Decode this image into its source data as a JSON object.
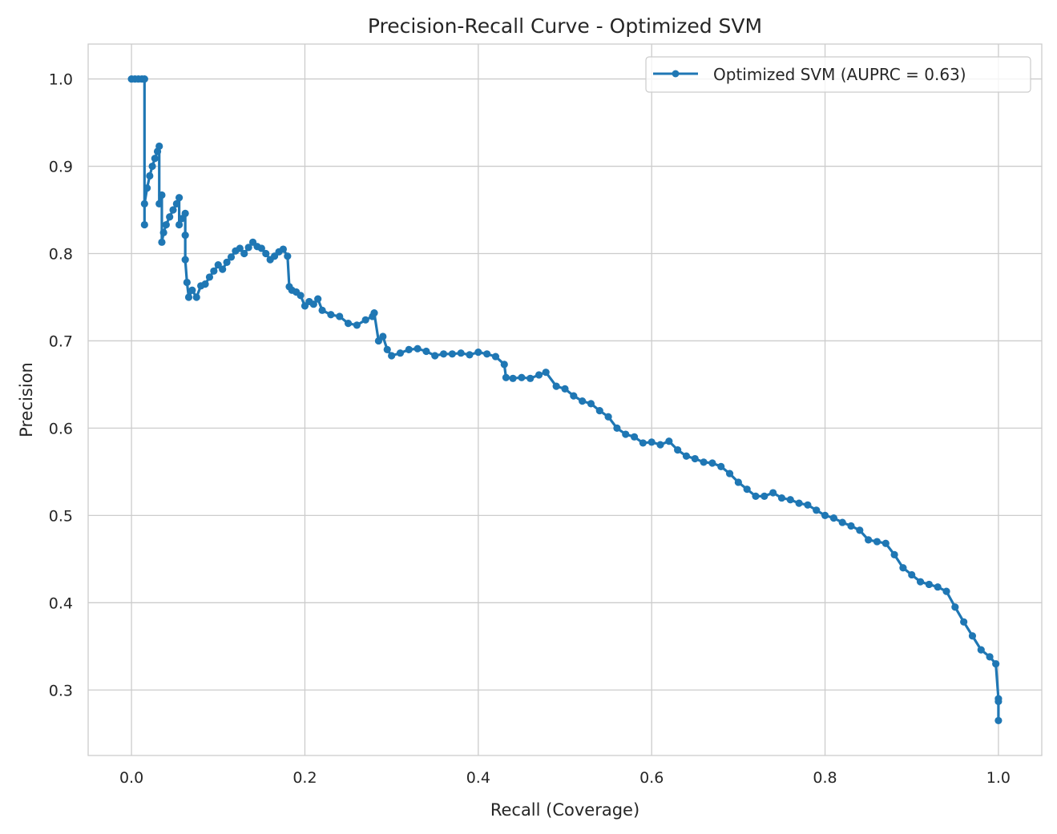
{
  "chart_data": {
    "type": "line",
    "title": "Precision-Recall Curve - Optimized SVM",
    "xlabel": "Recall (Coverage)",
    "ylabel": "Precision",
    "xlim": [
      -0.05,
      1.05
    ],
    "ylim": [
      0.225,
      1.04
    ],
    "x_ticks": [
      0.0,
      0.2,
      0.4,
      0.6,
      0.8,
      1.0
    ],
    "x_tick_labels": [
      "0.0",
      "0.2",
      "0.4",
      "0.6",
      "0.8",
      "1.0"
    ],
    "y_ticks": [
      0.3,
      0.4,
      0.5,
      0.6,
      0.7,
      0.8,
      0.9,
      1.0
    ],
    "y_tick_labels": [
      "0.3",
      "0.4",
      "0.5",
      "0.6",
      "0.7",
      "0.8",
      "0.9",
      "1.0"
    ],
    "grid": true,
    "legend_position": "top-right",
    "series": [
      {
        "name": "Optimized SVM (AUPRC = 0.63)",
        "color": "#1f77b4",
        "marker": "circle",
        "x": [
          0.0,
          0.004,
          0.008,
          0.012,
          0.015,
          0.015,
          0.015,
          0.018,
          0.021,
          0.024,
          0.027,
          0.03,
          0.032,
          0.032,
          0.035,
          0.035,
          0.037,
          0.04,
          0.044,
          0.048,
          0.052,
          0.055,
          0.055,
          0.058,
          0.062,
          0.062,
          0.062,
          0.064,
          0.066,
          0.07,
          0.075,
          0.08,
          0.085,
          0.09,
          0.095,
          0.1,
          0.105,
          0.11,
          0.115,
          0.12,
          0.125,
          0.13,
          0.135,
          0.14,
          0.145,
          0.15,
          0.155,
          0.16,
          0.165,
          0.17,
          0.175,
          0.18,
          0.182,
          0.185,
          0.19,
          0.195,
          0.2,
          0.205,
          0.21,
          0.215,
          0.22,
          0.23,
          0.24,
          0.25,
          0.26,
          0.27,
          0.278,
          0.28,
          0.285,
          0.29,
          0.295,
          0.3,
          0.31,
          0.32,
          0.33,
          0.34,
          0.35,
          0.36,
          0.37,
          0.38,
          0.39,
          0.4,
          0.41,
          0.42,
          0.43,
          0.432,
          0.44,
          0.45,
          0.46,
          0.47,
          0.478,
          0.49,
          0.5,
          0.51,
          0.52,
          0.53,
          0.54,
          0.55,
          0.56,
          0.57,
          0.58,
          0.59,
          0.6,
          0.61,
          0.62,
          0.63,
          0.64,
          0.65,
          0.66,
          0.67,
          0.68,
          0.69,
          0.7,
          0.71,
          0.72,
          0.73,
          0.74,
          0.75,
          0.76,
          0.77,
          0.78,
          0.79,
          0.8,
          0.81,
          0.82,
          0.83,
          0.84,
          0.85,
          0.86,
          0.87,
          0.88,
          0.89,
          0.9,
          0.91,
          0.92,
          0.93,
          0.94,
          0.95,
          0.96,
          0.97,
          0.98,
          0.99,
          0.997,
          1.0,
          1.0,
          1.0
        ],
        "y": [
          1.0,
          1.0,
          1.0,
          1.0,
          1.0,
          0.833,
          0.857,
          0.875,
          0.889,
          0.9,
          0.909,
          0.917,
          0.923,
          0.857,
          0.867,
          0.813,
          0.824,
          0.833,
          0.842,
          0.85,
          0.857,
          0.864,
          0.833,
          0.84,
          0.846,
          0.821,
          0.793,
          0.767,
          0.75,
          0.758,
          0.75,
          0.763,
          0.765,
          0.773,
          0.78,
          0.787,
          0.782,
          0.79,
          0.796,
          0.803,
          0.806,
          0.8,
          0.807,
          0.813,
          0.808,
          0.806,
          0.8,
          0.793,
          0.797,
          0.802,
          0.805,
          0.797,
          0.762,
          0.758,
          0.756,
          0.752,
          0.74,
          0.745,
          0.742,
          0.748,
          0.735,
          0.73,
          0.728,
          0.72,
          0.718,
          0.724,
          0.728,
          0.732,
          0.7,
          0.705,
          0.69,
          0.683,
          0.686,
          0.69,
          0.691,
          0.688,
          0.683,
          0.685,
          0.685,
          0.686,
          0.684,
          0.687,
          0.685,
          0.682,
          0.673,
          0.658,
          0.657,
          0.658,
          0.657,
          0.661,
          0.664,
          0.648,
          0.645,
          0.637,
          0.631,
          0.628,
          0.62,
          0.613,
          0.6,
          0.593,
          0.59,
          0.583,
          0.584,
          0.581,
          0.585,
          0.575,
          0.568,
          0.565,
          0.561,
          0.56,
          0.556,
          0.548,
          0.538,
          0.53,
          0.522,
          0.522,
          0.526,
          0.52,
          0.518,
          0.514,
          0.512,
          0.506,
          0.5,
          0.497,
          0.492,
          0.488,
          0.483,
          0.472,
          0.47,
          0.468,
          0.455,
          0.44,
          0.432,
          0.424,
          0.421,
          0.418,
          0.413,
          0.395,
          0.378,
          0.362,
          0.346,
          0.338,
          0.33,
          0.29,
          0.265,
          0.287
        ]
      }
    ]
  }
}
